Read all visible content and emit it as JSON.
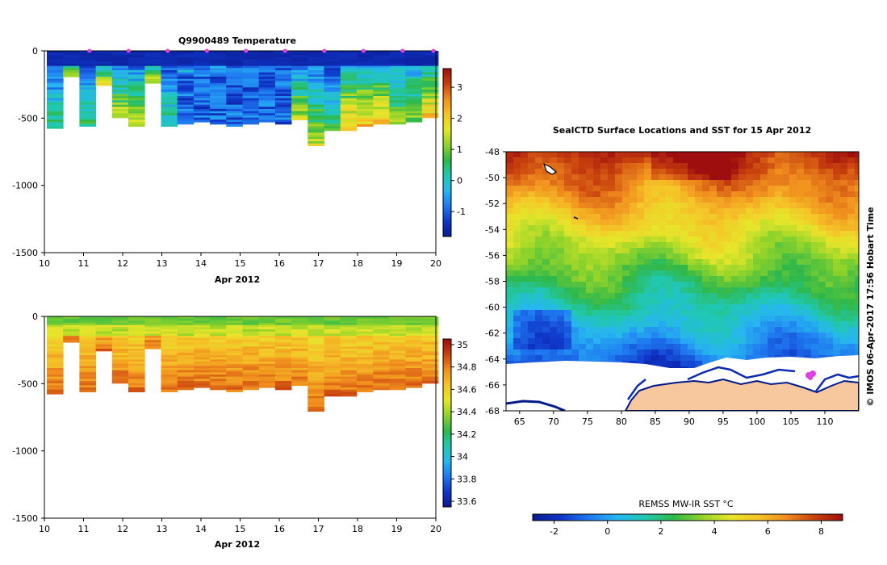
{
  "colors": {
    "scale": [
      "#0b1a8f",
      "#0f36c8",
      "#1f78f0",
      "#27b6f0",
      "#20c8b0",
      "#2fb84a",
      "#8fd32a",
      "#e6e62a",
      "#f5c428",
      "#f08e1e",
      "#c8400e",
      "#9e0e0e"
    ],
    "ice": "#ffffff",
    "land": "#f7c89e",
    "coast": "#001a8a",
    "marker": "#e040e0"
  },
  "footer_text": "© IMOS 06-Apr-2017 17:56 Hobart Time",
  "chart_data": [
    {
      "type": "heatmap",
      "title": "Q9900489  Temperature",
      "xlabel": "Apr 2012",
      "ylabel": "",
      "x_ticks": [
        "10",
        "11",
        "12",
        "13",
        "14",
        "15",
        "16",
        "17",
        "18",
        "19",
        "20"
      ],
      "xlim": [
        10,
        20
      ],
      "y_ticks": [
        "0",
        "-500",
        "-1000",
        "-1500"
      ],
      "ylim": [
        -1500,
        0
      ],
      "profile_markers_day": [
        11,
        12,
        13,
        14,
        15,
        16,
        17,
        18,
        19,
        20
      ],
      "profiles_max_depth": [
        -570,
        -180,
        -550,
        -250,
        -490,
        -550,
        -230,
        -560,
        -530,
        -520,
        -530,
        -560,
        -530,
        -520,
        -530,
        -510,
        -700,
        -580,
        -580,
        -560,
        -540,
        -530,
        -520,
        -490
      ],
      "colorbar_ticks": [
        "3",
        "2",
        "1",
        "0",
        "-1"
      ],
      "colorbar_range": [
        -1.8,
        3.6
      ]
    },
    {
      "type": "heatmap",
      "title": "",
      "xlabel": "Apr 2012",
      "ylabel": "",
      "x_ticks": [
        "10",
        "11",
        "12",
        "13",
        "14",
        "15",
        "16",
        "17",
        "18",
        "19",
        "20"
      ],
      "xlim": [
        10,
        20
      ],
      "y_ticks": [
        "0",
        "-500",
        "-1000",
        "-1500"
      ],
      "ylim": [
        -1500,
        0
      ],
      "profiles_max_depth": [
        -570,
        -180,
        -550,
        -250,
        -490,
        -550,
        -230,
        -560,
        -530,
        -520,
        -530,
        -560,
        -530,
        -520,
        -530,
        -510,
        -700,
        -580,
        -580,
        -560,
        -540,
        -530,
        -520,
        -490
      ],
      "colorbar_ticks": [
        "35",
        "34.8",
        "34.6",
        "34.4",
        "34.2",
        "34",
        "33.8",
        "33.6"
      ],
      "colorbar_range": [
        33.55,
        35.05
      ]
    },
    {
      "type": "heatmap",
      "title": "SealCTD Surface Locations and SST for 15 Apr 2012",
      "xlabel": "",
      "ylabel": "",
      "x_ticks": [
        "65",
        "70",
        "75",
        "80",
        "85",
        "90",
        "95",
        "100",
        "105",
        "110"
      ],
      "xlim": [
        63,
        115
      ],
      "y_ticks": [
        "-48",
        "-50",
        "-52",
        "-54",
        "-56",
        "-58",
        "-60",
        "-62",
        "-64",
        "-66",
        "-68"
      ],
      "ylim": [
        -68,
        -48
      ],
      "colorbar_label": "REMSS MW-IR SST °C",
      "colorbar_ticks": [
        "-2",
        "0",
        "2",
        "4",
        "6",
        "8"
      ],
      "colorbar_range": [
        -2.8,
        8.8
      ]
    }
  ]
}
